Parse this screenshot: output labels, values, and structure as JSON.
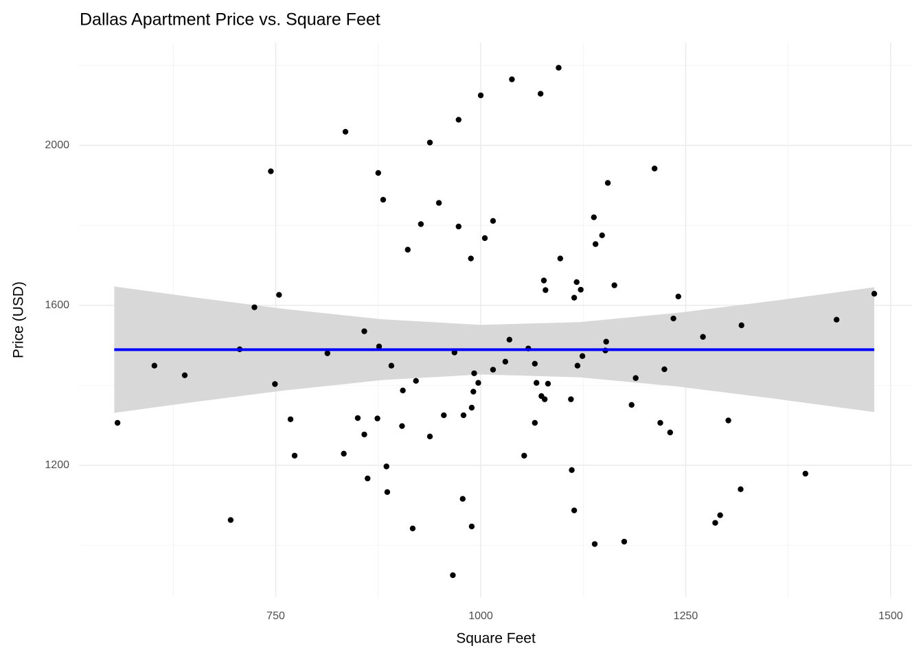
{
  "chart_data": {
    "type": "scatter",
    "title": "Dallas Apartment Price vs. Square Feet",
    "x_label": "Square Feet",
    "y_label": "Price (USD)",
    "xlim": [
      510,
      1526
    ],
    "ylim": [
      870,
      2257
    ],
    "xticks": [
      750,
      1000,
      1250,
      1500
    ],
    "yticks": [
      1200,
      1600,
      2000
    ],
    "x_minor_grid": [
      625,
      875,
      1125,
      1375
    ],
    "y_minor_grid": [
      1000,
      1400,
      1800,
      2200
    ],
    "grid": true,
    "point_color": "#000000",
    "x": [
      557,
      602,
      639,
      695,
      706,
      724,
      744,
      749,
      754,
      768,
      773,
      813,
      833,
      835,
      850,
      858,
      858,
      862,
      874,
      875,
      876,
      881,
      885,
      886,
      891,
      904,
      905,
      911,
      917,
      921,
      927,
      938,
      938,
      949,
      955,
      966,
      968,
      973,
      973,
      978,
      979,
      988,
      989,
      989,
      991,
      992,
      997,
      1000,
      1005,
      1015,
      1015,
      1030,
      1035,
      1038,
      1053,
      1058,
      1066,
      1066,
      1068,
      1073,
      1074,
      1077,
      1078,
      1079,
      1082,
      1095,
      1097,
      1110,
      1111,
      1114,
      1114,
      1117,
      1118,
      1122,
      1124,
      1138,
      1139,
      1140,
      1148,
      1152,
      1153,
      1155,
      1163,
      1175,
      1184,
      1189,
      1212,
      1219,
      1224,
      1231,
      1235,
      1241,
      1271,
      1286,
      1292,
      1302,
      1317,
      1318,
      1396,
      1434,
      1480
    ],
    "y": [
      1306,
      1449,
      1425,
      1063,
      1490,
      1595,
      1935,
      1403,
      1626,
      1315,
      1224,
      1480,
      1229,
      2034,
      1318,
      1535,
      1277,
      1167,
      1317,
      1931,
      1497,
      1864,
      1197,
      1133,
      1449,
      1298,
      1387,
      1739,
      1042,
      1411,
      1803,
      1272,
      2007,
      1856,
      1325,
      925,
      1482,
      1797,
      2064,
      1116,
      1325,
      1717,
      1047,
      1344,
      1384,
      1430,
      1406,
      2125,
      1768,
      1439,
      1811,
      1459,
      1514,
      2165,
      1224,
      1492,
      1454,
      1306,
      1406,
      2129,
      1373,
      1662,
      1365,
      1638,
      1404,
      2194,
      1717,
      1365,
      1188,
      1619,
      1087,
      1658,
      1449,
      1639,
      1473,
      1820,
      1003,
      1753,
      1775,
      1487,
      1509,
      1906,
      1650,
      1009,
      1351,
      1418,
      1942,
      1306,
      1440,
      1282,
      1567,
      1622,
      1521,
      1056,
      1075,
      1312,
      1140,
      1550,
      1179,
      1564,
      1629
    ],
    "fit": {
      "color": "#0000ff",
      "x": [
        553,
        1480
      ],
      "y": [
        1489,
        1489
      ]
    },
    "band": {
      "color": "#d6d6d6",
      "x": [
        553,
        650,
        760,
        880,
        1000,
        1120,
        1240,
        1360,
        1480
      ],
      "upper": [
        1647,
        1620,
        1591,
        1565,
        1551,
        1558,
        1581,
        1612,
        1645
      ],
      "lower": [
        1331,
        1358,
        1387,
        1413,
        1427,
        1420,
        1397,
        1366,
        1333
      ]
    }
  }
}
